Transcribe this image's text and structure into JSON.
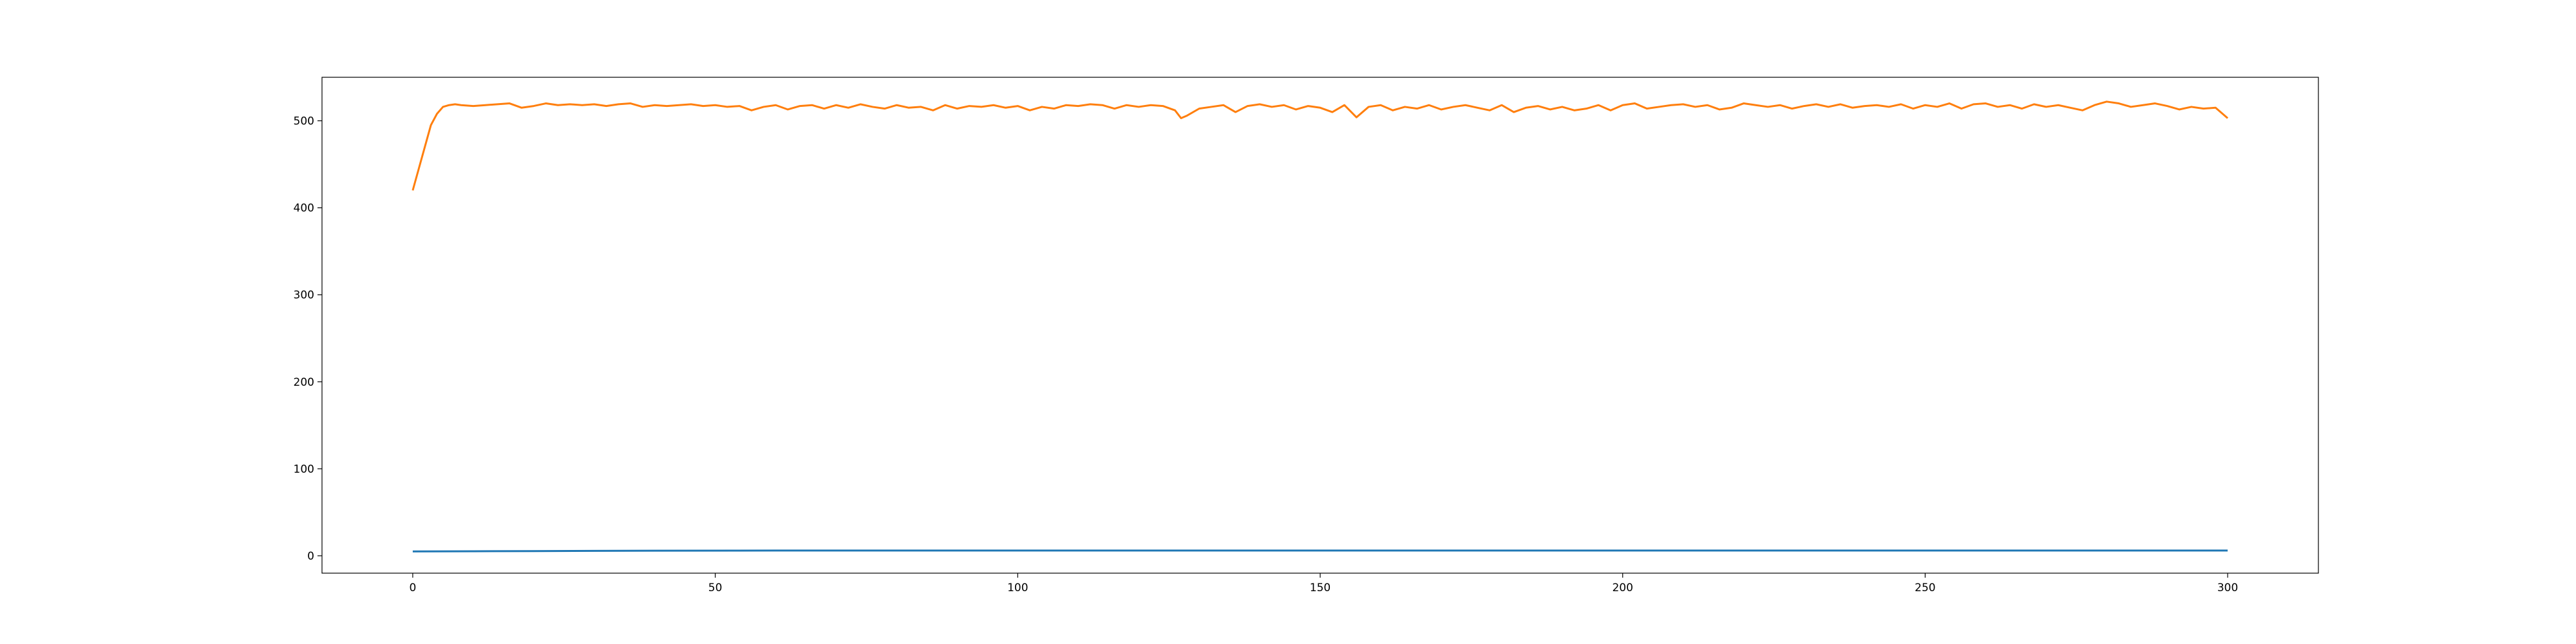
{
  "chart_data": {
    "type": "line",
    "title": "",
    "xlabel": "",
    "ylabel": "",
    "xlim": [
      -15,
      315
    ],
    "ylim": [
      -20,
      550
    ],
    "xticks": [
      0,
      50,
      100,
      150,
      200,
      250,
      300
    ],
    "yticks": [
      0,
      100,
      200,
      300,
      400,
      500
    ],
    "grid": false,
    "legend": "none",
    "series": [
      {
        "color": "#1f77b4",
        "x": [
          0,
          10,
          20,
          30,
          40,
          60,
          80,
          100,
          150,
          200,
          250,
          300
        ],
        "y": [
          5,
          5.2,
          5.4,
          5.6,
          5.8,
          6,
          6,
          6,
          6,
          6,
          6,
          6
        ]
      },
      {
        "color": "#ff7f0e",
        "x": [
          0,
          1,
          2,
          3,
          4,
          5,
          6,
          7,
          8,
          10,
          12,
          14,
          16,
          18,
          20,
          22,
          24,
          26,
          28,
          30,
          32,
          34,
          36,
          38,
          40,
          42,
          44,
          46,
          48,
          50,
          52,
          54,
          56,
          58,
          60,
          62,
          64,
          66,
          68,
          70,
          72,
          74,
          76,
          78,
          80,
          82,
          84,
          86,
          88,
          90,
          92,
          94,
          96,
          98,
          100,
          102,
          104,
          106,
          108,
          110,
          112,
          114,
          116,
          118,
          120,
          122,
          124,
          126,
          127,
          128,
          130,
          132,
          134,
          136,
          138,
          140,
          142,
          144,
          146,
          148,
          150,
          152,
          154,
          156,
          158,
          160,
          162,
          164,
          166,
          168,
          170,
          172,
          174,
          176,
          178,
          180,
          182,
          184,
          186,
          188,
          190,
          192,
          194,
          196,
          198,
          200,
          202,
          204,
          206,
          208,
          210,
          212,
          214,
          216,
          218,
          220,
          222,
          224,
          226,
          228,
          230,
          232,
          234,
          236,
          238,
          240,
          242,
          244,
          246,
          248,
          250,
          252,
          254,
          256,
          258,
          260,
          262,
          264,
          266,
          268,
          270,
          272,
          274,
          276,
          278,
          280,
          282,
          284,
          286,
          288,
          290,
          292,
          294,
          296,
          298,
          300
        ],
        "y": [
          420,
          445,
          470,
          495,
          508,
          516,
          518,
          519,
          518,
          517,
          518,
          519,
          520,
          515,
          517,
          520,
          518,
          519,
          518,
          519,
          517,
          519,
          520,
          516,
          518,
          517,
          518,
          519,
          517,
          518,
          516,
          517,
          512,
          516,
          518,
          513,
          517,
          518,
          514,
          518,
          515,
          519,
          516,
          514,
          518,
          515,
          516,
          512,
          518,
          514,
          517,
          516,
          518,
          515,
          517,
          512,
          516,
          514,
          518,
          517,
          519,
          518,
          514,
          518,
          516,
          518,
          517,
          512,
          503,
          506,
          514,
          516,
          518,
          510,
          517,
          519,
          516,
          518,
          513,
          517,
          515,
          510,
          518,
          504,
          516,
          518,
          512,
          516,
          514,
          518,
          513,
          516,
          518,
          515,
          512,
          518,
          510,
          515,
          517,
          513,
          516,
          512,
          514,
          518,
          512,
          518,
          520,
          514,
          516,
          518,
          519,
          516,
          518,
          513,
          515,
          520,
          518,
          516,
          518,
          514,
          517,
          519,
          516,
          519,
          515,
          517,
          518,
          516,
          519,
          514,
          518,
          516,
          520,
          514,
          519,
          520,
          516,
          518,
          514,
          519,
          516,
          518,
          515,
          512,
          518,
          522,
          520,
          516,
          518,
          520,
          517,
          513,
          516,
          514,
          515,
          503
        ]
      }
    ]
  }
}
